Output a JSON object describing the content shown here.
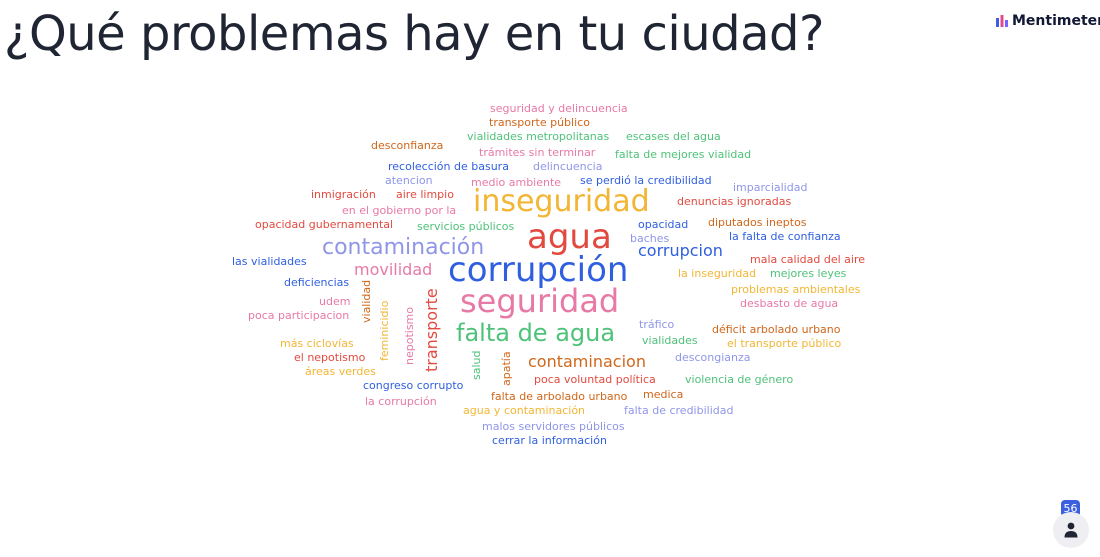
{
  "title": "¿Qué problemas hay en tu ciudad?",
  "brand": {
    "name": "Mentimeter",
    "logo_icon": "mentimeter-logo-icon"
  },
  "participants": {
    "count": "56",
    "icon": "person-icon"
  },
  "word_cloud": [
    {
      "text": "seguridad y delincuencia",
      "color": "#e879a6"
    },
    {
      "text": "transporte público",
      "color": "#d0671b"
    },
    {
      "text": "vialidades metropolitanas",
      "color": "#4fc27a"
    },
    {
      "text": "escases del agua",
      "color": "#4fc27a"
    },
    {
      "text": "desconfianza",
      "color": "#d0671b"
    },
    {
      "text": "trámites sin terminar",
      "color": "#e879a6"
    },
    {
      "text": "falta de mejores vialidad",
      "color": "#4fc27a"
    },
    {
      "text": "recolección de basura",
      "color": "#2f5fe0"
    },
    {
      "text": "delincuencia",
      "color": "#8f96e8"
    },
    {
      "text": "atencion",
      "color": "#8f96e8"
    },
    {
      "text": "medio ambiente",
      "color": "#e879a6"
    },
    {
      "text": "se perdió la credibilidad",
      "color": "#2f5fe0"
    },
    {
      "text": "imparcialidad",
      "color": "#8f96e8"
    },
    {
      "text": "inmigración",
      "color": "#e24a3f"
    },
    {
      "text": "aire limpio",
      "color": "#e24a3f"
    },
    {
      "text": "inseguridad",
      "color": "#f2b634"
    },
    {
      "text": "denuncias ignoradas",
      "color": "#e24a3f"
    },
    {
      "text": "en el gobierno por la",
      "color": "#e879a6"
    },
    {
      "text": "opacidad gubernamental",
      "color": "#e24a3f"
    },
    {
      "text": "servicios públicos",
      "color": "#4fc27a"
    },
    {
      "text": "opacidad",
      "color": "#2f5fe0"
    },
    {
      "text": "diputados ineptos",
      "color": "#d0671b"
    },
    {
      "text": "agua",
      "color": "#e24a3f"
    },
    {
      "text": "baches",
      "color": "#8f96e8"
    },
    {
      "text": "la falta de confianza",
      "color": "#2f5fe0"
    },
    {
      "text": "contaminación",
      "color": "#8f96e8"
    },
    {
      "text": "corrupcion",
      "color": "#2f5fe0"
    },
    {
      "text": "las vialidades",
      "color": "#2f5fe0"
    },
    {
      "text": "corrupción",
      "color": "#2f5fe0"
    },
    {
      "text": "mala calidad del aire",
      "color": "#e24a3f"
    },
    {
      "text": "movilidad",
      "color": "#e879a6"
    },
    {
      "text": "la inseguridad",
      "color": "#f2b634"
    },
    {
      "text": "mejores leyes",
      "color": "#4fc27a"
    },
    {
      "text": "deficiencias",
      "color": "#2f5fe0"
    },
    {
      "text": "problemas ambientales",
      "color": "#f2b634"
    },
    {
      "text": "udem",
      "color": "#e879a6"
    },
    {
      "text": "seguridad",
      "color": "#e879a6"
    },
    {
      "text": "desbasto de agua",
      "color": "#e879a6"
    },
    {
      "text": "poca participacion",
      "color": "#e879a6"
    },
    {
      "text": "tráfico",
      "color": "#8f96e8"
    },
    {
      "text": "falta de agua",
      "color": "#4fc27a"
    },
    {
      "text": "déficit arbolado urbano",
      "color": "#d0671b"
    },
    {
      "text": "vialidades",
      "color": "#4fc27a"
    },
    {
      "text": "más ciclovías",
      "color": "#f2b634"
    },
    {
      "text": "el transporte público",
      "color": "#f2b634"
    },
    {
      "text": "el nepotismo",
      "color": "#e24a3f"
    },
    {
      "text": "descongianza",
      "color": "#8f96e8"
    },
    {
      "text": "contaminacion",
      "color": "#d0671b"
    },
    {
      "text": "áreas verdes",
      "color": "#f2b634"
    },
    {
      "text": "poca voluntad política",
      "color": "#e24a3f"
    },
    {
      "text": "violencia de género",
      "color": "#4fc27a"
    },
    {
      "text": "congreso corrupto",
      "color": "#2f5fe0"
    },
    {
      "text": "falta de arbolado urbano",
      "color": "#d0671b"
    },
    {
      "text": "medica",
      "color": "#d0671b"
    },
    {
      "text": "la corrupción",
      "color": "#e879a6"
    },
    {
      "text": "agua y contaminación",
      "color": "#f2b634"
    },
    {
      "text": "falta de credibilidad",
      "color": "#8f96e8"
    },
    {
      "text": "malos servidores públicos",
      "color": "#8f96e8"
    },
    {
      "text": "cerrar la información",
      "color": "#2f5fe0"
    },
    {
      "text": "vialidad",
      "color": "#d0671b"
    },
    {
      "text": "feminicidio",
      "color": "#f2b634"
    },
    {
      "text": "nepotismo",
      "color": "#e879a6"
    },
    {
      "text": "transporte",
      "color": "#e24a3f"
    },
    {
      "text": "salud",
      "color": "#4fc27a"
    },
    {
      "text": "apatía",
      "color": "#d0671b"
    }
  ]
}
